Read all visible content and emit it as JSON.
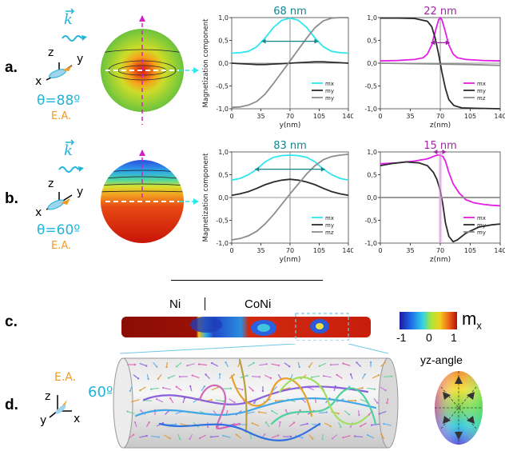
{
  "panels": {
    "a": {
      "label": "a.",
      "k": "k",
      "axis_z": "z",
      "axis_y": "y",
      "axis_x": "x",
      "theta": "θ=88º",
      "ea": "E.A."
    },
    "b": {
      "label": "b.",
      "k": "k",
      "axis_z": "z",
      "axis_y": "y",
      "axis_x": "x",
      "theta": "θ=60º",
      "ea": "E.A."
    },
    "c": {
      "label": "c.",
      "ni": "Ni",
      "coni": "CoNi"
    },
    "d": {
      "label": "d.",
      "ea": "E.A.",
      "angle": "60º",
      "axis_z": "z",
      "axis_y": "y",
      "axis_x": "x"
    }
  },
  "colorbar": {
    "symbol": "m",
    "subscript": "x",
    "ticks": [
      "-1",
      "0",
      "1"
    ]
  },
  "yz_angle_label": "yz-angle",
  "colors": {
    "cyan": "#2ee6ec",
    "black": "#2b2b2b",
    "gray": "#8c8c8c",
    "magenta": "#e21ee6",
    "teal": "#13858e",
    "purple": "#9a2a9e",
    "orange": "#f39a24",
    "lightblue": "#20b4d8"
  },
  "chart_data": [
    {
      "type": "line",
      "panel": "a",
      "xlabel": "y(nm)",
      "ylabel": "Magnetization component",
      "xticks": [
        "0",
        "35",
        "70",
        "105",
        "140"
      ],
      "yticks": [
        "1,0",
        "0,5",
        "0,0",
        "-0,5",
        "-1,0"
      ],
      "xlim": [
        0,
        140
      ],
      "ylim": [
        -1,
        1
      ],
      "annotation": "68 nm",
      "legend": [
        "mx",
        "my",
        "my"
      ],
      "series": [
        {
          "name": "mx",
          "x": [
            0,
            10,
            20,
            30,
            40,
            50,
            60,
            70,
            80,
            90,
            100,
            110,
            120,
            130,
            140
          ],
          "y": [
            0.22,
            0.23,
            0.26,
            0.36,
            0.55,
            0.78,
            0.94,
            0.99,
            0.94,
            0.78,
            0.55,
            0.36,
            0.26,
            0.23,
            0.22
          ]
        },
        {
          "name": "my",
          "x": [
            0,
            10,
            20,
            30,
            40,
            50,
            60,
            70,
            80,
            90,
            100,
            110,
            120,
            130,
            140
          ],
          "y": [
            0.0,
            -0.01,
            -0.02,
            -0.03,
            -0.03,
            -0.02,
            -0.01,
            0.0,
            0.01,
            0.02,
            0.03,
            0.03,
            0.02,
            0.01,
            0.0
          ]
        },
        {
          "name": "my",
          "x": [
            0,
            10,
            20,
            30,
            40,
            50,
            60,
            70,
            80,
            90,
            100,
            110,
            120,
            130,
            140
          ],
          "y": [
            -0.97,
            -0.96,
            -0.92,
            -0.84,
            -0.68,
            -0.45,
            -0.2,
            0.05,
            0.3,
            0.55,
            0.78,
            0.93,
            0.99,
            1.0,
            1.0
          ]
        }
      ]
    },
    {
      "type": "line",
      "panel": "a",
      "xlabel": "z(nm)",
      "ylabel": "",
      "xticks": [
        "0",
        "35",
        "70",
        "105",
        "140"
      ],
      "yticks": [
        "1,0",
        "0,5",
        "0,0",
        "-0,5",
        "-1,0"
      ],
      "xlim": [
        0,
        140
      ],
      "ylim": [
        -1,
        1
      ],
      "annotation": "22 nm",
      "legend": [
        "mx",
        "my",
        "mz"
      ],
      "series": [
        {
          "name": "mx",
          "x": [
            0,
            20,
            40,
            50,
            55,
            60,
            65,
            68,
            70,
            72,
            75,
            80,
            85,
            90,
            100,
            120,
            140
          ],
          "y": [
            0.05,
            0.06,
            0.08,
            0.12,
            0.2,
            0.4,
            0.75,
            0.95,
            1.0,
            0.95,
            0.75,
            0.4,
            0.2,
            0.12,
            0.08,
            0.06,
            0.05
          ]
        },
        {
          "name": "my",
          "x": [
            0,
            20,
            40,
            55,
            60,
            64,
            68,
            70,
            72,
            76,
            80,
            86,
            95,
            110,
            140
          ],
          "y": [
            0.99,
            0.99,
            0.98,
            0.92,
            0.8,
            0.55,
            0.2,
            0.0,
            -0.2,
            -0.55,
            -0.8,
            -0.93,
            -0.98,
            -0.99,
            -1.0
          ]
        },
        {
          "name": "mz",
          "x": [
            0,
            35,
            70,
            105,
            140
          ],
          "y": [
            0.0,
            -0.01,
            -0.02,
            -0.03,
            -0.05
          ]
        }
      ]
    },
    {
      "type": "line",
      "panel": "b",
      "xlabel": "y(nm)",
      "ylabel": "Magnetization component",
      "xticks": [
        "0",
        "35",
        "70",
        "105",
        "140"
      ],
      "yticks": [
        "1,0",
        "0,5",
        "0,0",
        "-0,5",
        "-1,0"
      ],
      "xlim": [
        0,
        140
      ],
      "ylim": [
        -1,
        1
      ],
      "annotation": "83 nm",
      "legend": [
        "mx",
        "my",
        "mz"
      ],
      "series": [
        {
          "name": "mx",
          "x": [
            0,
            10,
            20,
            30,
            40,
            50,
            60,
            70,
            80,
            90,
            100,
            110,
            120,
            130,
            140
          ],
          "y": [
            0.38,
            0.42,
            0.5,
            0.62,
            0.78,
            0.88,
            0.92,
            0.93,
            0.92,
            0.88,
            0.78,
            0.62,
            0.5,
            0.42,
            0.38
          ]
        },
        {
          "name": "my",
          "x": [
            0,
            10,
            20,
            30,
            40,
            50,
            60,
            70,
            80,
            90,
            100,
            110,
            120,
            130,
            140
          ],
          "y": [
            0.05,
            0.08,
            0.13,
            0.2,
            0.28,
            0.34,
            0.38,
            0.4,
            0.38,
            0.34,
            0.28,
            0.2,
            0.13,
            0.08,
            0.05
          ]
        },
        {
          "name": "mz",
          "x": [
            0,
            10,
            20,
            30,
            40,
            50,
            60,
            70,
            80,
            90,
            100,
            110,
            120,
            130,
            140
          ],
          "y": [
            -0.93,
            -0.9,
            -0.84,
            -0.74,
            -0.58,
            -0.38,
            -0.15,
            0.08,
            0.3,
            0.52,
            0.7,
            0.83,
            0.9,
            0.93,
            0.95
          ]
        }
      ]
    },
    {
      "type": "line",
      "panel": "b",
      "xlabel": "z(nm)",
      "ylabel": "",
      "xticks": [
        "0",
        "35",
        "70",
        "105",
        "140"
      ],
      "yticks": [
        "1,0",
        "0,5",
        "0,0",
        "-0,5",
        "-1,0"
      ],
      "xlim": [
        0,
        140
      ],
      "ylim": [
        -1,
        1
      ],
      "annotation": "15 nm",
      "legend": [
        "mx",
        "my",
        "my"
      ],
      "series": [
        {
          "name": "mx",
          "x": [
            0,
            20,
            40,
            55,
            62,
            66,
            70,
            73,
            76,
            80,
            85,
            92,
            100,
            110,
            120,
            130,
            140
          ],
          "y": [
            0.74,
            0.76,
            0.8,
            0.85,
            0.9,
            0.93,
            0.93,
            0.9,
            0.8,
            0.55,
            0.3,
            0.1,
            -0.05,
            -0.12,
            -0.15,
            -0.17,
            -0.18
          ]
        },
        {
          "name": "my",
          "x": [
            0,
            15,
            30,
            45,
            55,
            62,
            66,
            70,
            73,
            76,
            80,
            85,
            90,
            100,
            115,
            130,
            140
          ],
          "y": [
            0.7,
            0.75,
            0.78,
            0.76,
            0.7,
            0.55,
            0.4,
            0.15,
            -0.15,
            -0.55,
            -0.85,
            -0.97,
            -0.93,
            -0.78,
            -0.65,
            -0.6,
            -0.58
          ]
        },
        {
          "name": "my",
          "x": [
            0,
            140
          ],
          "y": [
            0.0,
            0.0
          ]
        }
      ]
    }
  ]
}
